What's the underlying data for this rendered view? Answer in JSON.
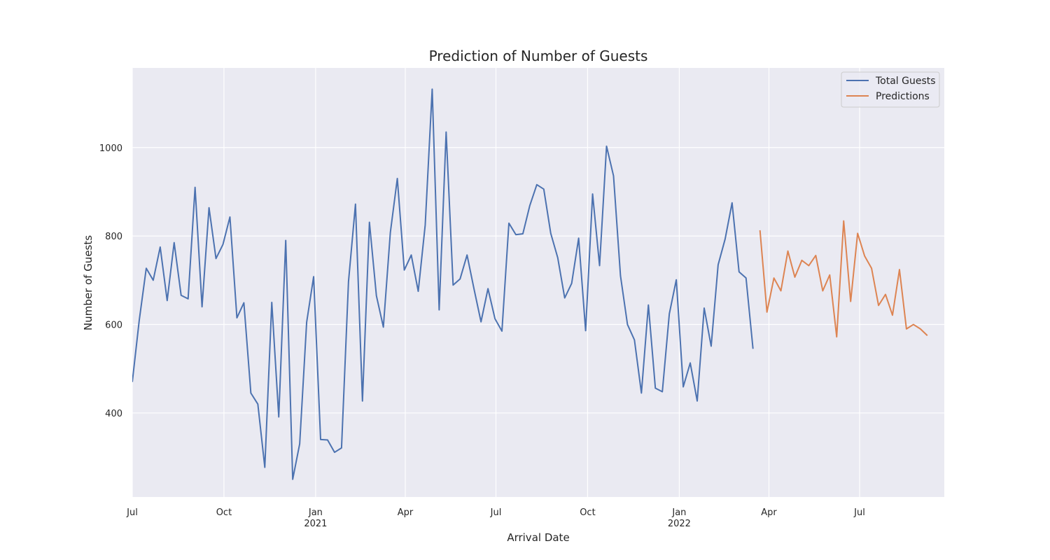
{
  "chart_data": {
    "type": "line",
    "title": "Prediction of Number of Guests",
    "xlabel": "Arrival Date",
    "ylabel": "Number of Guests",
    "xlim": [
      "2020-07-01",
      "2022-09-24"
    ],
    "ylim": [
      210,
      1180
    ],
    "grid": true,
    "legend_position": "top-right",
    "x_ticks": [
      {
        "date": "2020-07-01",
        "label": "Jul",
        "sublabel": ""
      },
      {
        "date": "2020-10-01",
        "label": "Oct",
        "sublabel": ""
      },
      {
        "date": "2021-01-01",
        "label": "Jan",
        "sublabel": "2021"
      },
      {
        "date": "2021-04-01",
        "label": "Apr",
        "sublabel": ""
      },
      {
        "date": "2021-07-01",
        "label": "Jul",
        "sublabel": ""
      },
      {
        "date": "2021-10-01",
        "label": "Oct",
        "sublabel": ""
      },
      {
        "date": "2022-01-01",
        "label": "Jan",
        "sublabel": "2022"
      },
      {
        "date": "2022-04-01",
        "label": "Apr",
        "sublabel": ""
      },
      {
        "date": "2022-07-01",
        "label": "Jul",
        "sublabel": ""
      }
    ],
    "y_ticks": [
      400,
      600,
      800,
      1000
    ],
    "series": [
      {
        "name": "Total Guests",
        "color": "#4c72b0",
        "points": [
          [
            "2020-07-01",
            470
          ],
          [
            "2020-07-08",
            610
          ],
          [
            "2020-07-15",
            727
          ],
          [
            "2020-07-22",
            700
          ],
          [
            "2020-07-29",
            775
          ],
          [
            "2020-08-05",
            654
          ],
          [
            "2020-08-12",
            785
          ],
          [
            "2020-08-19",
            666
          ],
          [
            "2020-08-26",
            658
          ],
          [
            "2020-09-02",
            910
          ],
          [
            "2020-09-09",
            640
          ],
          [
            "2020-09-16",
            864
          ],
          [
            "2020-09-23",
            749
          ],
          [
            "2020-09-30",
            781
          ],
          [
            "2020-10-07",
            843
          ],
          [
            "2020-10-14",
            615
          ],
          [
            "2020-10-21",
            649
          ],
          [
            "2020-10-28",
            445
          ],
          [
            "2020-11-04",
            420
          ],
          [
            "2020-11-11",
            277
          ],
          [
            "2020-11-18",
            650
          ],
          [
            "2020-11-25",
            391
          ],
          [
            "2020-12-02",
            790
          ],
          [
            "2020-12-09",
            250
          ],
          [
            "2020-12-16",
            330
          ],
          [
            "2020-12-23",
            605
          ],
          [
            "2020-12-30",
            708
          ],
          [
            "2021-01-06",
            340
          ],
          [
            "2021-01-13",
            339
          ],
          [
            "2021-01-20",
            311
          ],
          [
            "2021-01-27",
            321
          ],
          [
            "2021-02-03",
            697
          ],
          [
            "2021-02-10",
            872
          ],
          [
            "2021-02-17",
            427
          ],
          [
            "2021-02-24",
            831
          ],
          [
            "2021-03-03",
            665
          ],
          [
            "2021-03-10",
            594
          ],
          [
            "2021-03-17",
            808
          ],
          [
            "2021-03-24",
            930
          ],
          [
            "2021-03-31",
            723
          ],
          [
            "2021-04-07",
            757
          ],
          [
            "2021-04-14",
            675
          ],
          [
            "2021-04-21",
            825
          ],
          [
            "2021-04-28",
            1132
          ],
          [
            "2021-05-05",
            633
          ],
          [
            "2021-05-12",
            1035
          ],
          [
            "2021-05-19",
            689
          ],
          [
            "2021-05-26",
            703
          ],
          [
            "2021-06-02",
            757
          ],
          [
            "2021-06-09",
            680
          ],
          [
            "2021-06-16",
            606
          ],
          [
            "2021-06-23",
            681
          ],
          [
            "2021-06-30",
            613
          ],
          [
            "2021-07-07",
            585
          ],
          [
            "2021-07-14",
            829
          ],
          [
            "2021-07-21",
            803
          ],
          [
            "2021-07-28",
            805
          ],
          [
            "2021-08-04",
            869
          ],
          [
            "2021-08-11",
            916
          ],
          [
            "2021-08-18",
            906
          ],
          [
            "2021-08-25",
            806
          ],
          [
            "2021-09-01",
            751
          ],
          [
            "2021-09-08",
            660
          ],
          [
            "2021-09-15",
            693
          ],
          [
            "2021-09-22",
            795
          ],
          [
            "2021-09-29",
            586
          ],
          [
            "2021-10-06",
            895
          ],
          [
            "2021-10-13",
            733
          ],
          [
            "2021-10-20",
            1003
          ],
          [
            "2021-10-27",
            936
          ],
          [
            "2021-11-03",
            710
          ],
          [
            "2021-11-10",
            600
          ],
          [
            "2021-11-17",
            565
          ],
          [
            "2021-11-24",
            445
          ],
          [
            "2021-12-01",
            644
          ],
          [
            "2021-12-08",
            456
          ],
          [
            "2021-12-15",
            448
          ],
          [
            "2021-12-22",
            624
          ],
          [
            "2021-12-29",
            701
          ],
          [
            "2022-01-05",
            459
          ],
          [
            "2022-01-12",
            513
          ],
          [
            "2022-01-19",
            427
          ],
          [
            "2022-01-26",
            637
          ],
          [
            "2022-02-02",
            551
          ],
          [
            "2022-02-09",
            735
          ],
          [
            "2022-02-16",
            793
          ],
          [
            "2022-02-23",
            875
          ],
          [
            "2022-03-02",
            719
          ],
          [
            "2022-03-09",
            705
          ],
          [
            "2022-03-16",
            545
          ]
        ]
      },
      {
        "name": "Predictions",
        "color": "#dd8452",
        "points": [
          [
            "2022-03-23",
            813
          ],
          [
            "2022-03-30",
            628
          ],
          [
            "2022-04-06",
            705
          ],
          [
            "2022-04-13",
            676
          ],
          [
            "2022-04-20",
            766
          ],
          [
            "2022-04-27",
            707
          ],
          [
            "2022-05-04",
            745
          ],
          [
            "2022-05-11",
            733
          ],
          [
            "2022-05-18",
            756
          ],
          [
            "2022-05-25",
            676
          ],
          [
            "2022-06-01",
            712
          ],
          [
            "2022-06-08",
            572
          ],
          [
            "2022-06-15",
            834
          ],
          [
            "2022-06-22",
            652
          ],
          [
            "2022-06-29",
            806
          ],
          [
            "2022-07-06",
            755
          ],
          [
            "2022-07-13",
            727
          ],
          [
            "2022-07-20",
            643
          ],
          [
            "2022-07-27",
            668
          ],
          [
            "2022-08-03",
            621
          ],
          [
            "2022-08-10",
            724
          ],
          [
            "2022-08-17",
            590
          ],
          [
            "2022-08-24",
            600
          ],
          [
            "2022-08-31",
            590
          ],
          [
            "2022-09-07",
            575
          ]
        ]
      }
    ]
  }
}
